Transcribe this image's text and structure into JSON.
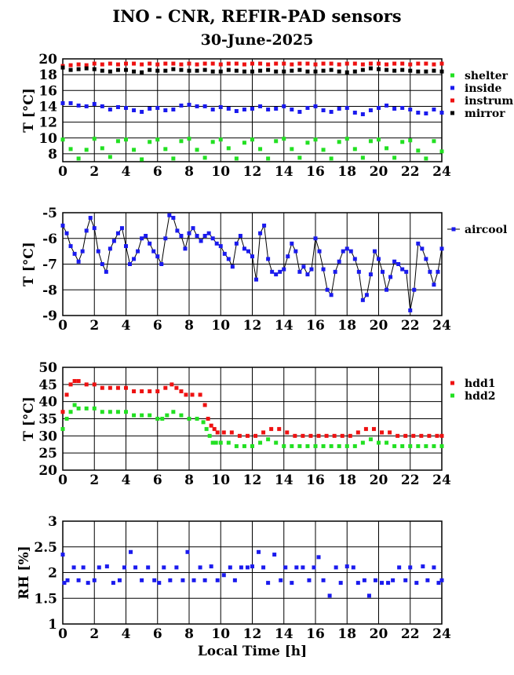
{
  "header": {
    "title": "INO - CNR, REFIR-PAD sensors",
    "subtitle": "30-June-2025"
  },
  "colors": {
    "shelter": "#22e022",
    "inside": "#1a1aee",
    "instrum": "#ee1111",
    "mirror": "#000000",
    "aircool": "#1a1aee",
    "hdd1": "#ee1111",
    "hdd2": "#22e022",
    "rh": "#1a1aee"
  },
  "x_axis": {
    "ticks": [
      "0",
      "2",
      "4",
      "6",
      "8",
      "10",
      "12",
      "14",
      "16",
      "18",
      "20",
      "22",
      "24"
    ],
    "label": "Local Time [h]"
  },
  "chart_data": [
    {
      "type": "scatter",
      "ylabel": "T [°C]",
      "xlim": [
        0,
        24
      ],
      "ylim": [
        7,
        20
      ],
      "yticks": [
        "8",
        "10",
        "12",
        "14",
        "16",
        "18",
        "20"
      ],
      "grid": true,
      "legend_position": "right",
      "series": [
        {
          "name": "shelter",
          "x": [
            0,
            0.5,
            1,
            1.5,
            2,
            2.5,
            3,
            3.5,
            4,
            4.5,
            5,
            5.5,
            6,
            6.5,
            7,
            7.5,
            8,
            8.5,
            9,
            9.5,
            10,
            10.5,
            11,
            11.5,
            12,
            12.5,
            13,
            13.5,
            14,
            14.5,
            15,
            15.5,
            16,
            16.5,
            17,
            17.5,
            18,
            18.5,
            19,
            19.5,
            20,
            20.5,
            21,
            21.5,
            22,
            22.5,
            23,
            23.5,
            24
          ],
          "y": [
            9.8,
            8.6,
            7.4,
            8.5,
            9.9,
            8.7,
            7.6,
            9.6,
            9.8,
            8.5,
            7.3,
            9.5,
            9.8,
            8.6,
            7.4,
            9.6,
            9.9,
            8.5,
            7.5,
            9.5,
            9.8,
            8.7,
            7.4,
            9.4,
            9.8,
            8.6,
            7.4,
            9.6,
            9.9,
            8.6,
            7.5,
            9.4,
            9.8,
            8.5,
            7.4,
            9.5,
            9.9,
            8.6,
            7.5,
            9.6,
            9.8,
            8.7,
            7.5,
            9.5,
            9.7,
            8.4,
            7.4,
            9.6,
            8.3
          ]
        },
        {
          "name": "inside",
          "x": [
            0,
            0.5,
            1,
            1.5,
            2,
            2.5,
            3,
            3.5,
            4,
            4.5,
            5,
            5.5,
            6,
            6.5,
            7,
            7.5,
            8,
            8.5,
            9,
            9.5,
            10,
            10.5,
            11,
            11.5,
            12,
            12.5,
            13,
            13.5,
            14,
            14.5,
            15,
            15.5,
            16,
            16.5,
            17,
            17.5,
            18,
            18.5,
            19,
            19.5,
            20,
            20.5,
            21,
            21.5,
            22,
            22.5,
            23,
            23.5,
            24
          ],
          "y": [
            14.4,
            14.4,
            14.1,
            14.0,
            14.3,
            14.0,
            13.6,
            13.9,
            13.8,
            13.5,
            13.3,
            13.7,
            13.8,
            13.5,
            13.6,
            14.1,
            14.2,
            14.0,
            14.0,
            13.6,
            13.9,
            13.7,
            13.4,
            13.6,
            13.7,
            14.0,
            13.6,
            13.7,
            14.0,
            13.6,
            13.3,
            13.8,
            14.0,
            13.5,
            13.3,
            13.7,
            13.8,
            13.2,
            13.0,
            13.5,
            13.8,
            14.1,
            13.7,
            13.8,
            13.6,
            13.2,
            13.1,
            13.6,
            13.2
          ]
        },
        {
          "name": "instrum.",
          "x": [
            0,
            0.5,
            1,
            1.5,
            2,
            2.5,
            3,
            3.5,
            4,
            4.5,
            5,
            5.5,
            6,
            6.5,
            7,
            7.5,
            8,
            8.5,
            9,
            9.5,
            10,
            10.5,
            11,
            11.5,
            12,
            12.5,
            13,
            13.5,
            14,
            14.5,
            15,
            15.5,
            16,
            16.5,
            17,
            17.5,
            18,
            18.5,
            19,
            19.5,
            20,
            20.5,
            21,
            21.5,
            22,
            22.5,
            23,
            23.5,
            24
          ],
          "y": [
            19.1,
            19.2,
            19.3,
            19.2,
            19.4,
            19.3,
            19.4,
            19.3,
            19.4,
            19.4,
            19.3,
            19.4,
            19.3,
            19.4,
            19.4,
            19.3,
            19.4,
            19.3,
            19.4,
            19.4,
            19.3,
            19.4,
            19.4,
            19.3,
            19.4,
            19.4,
            19.3,
            19.4,
            19.4,
            19.3,
            19.4,
            19.4,
            19.3,
            19.4,
            19.4,
            19.3,
            19.4,
            19.4,
            19.3,
            19.4,
            19.4,
            19.3,
            19.4,
            19.4,
            19.3,
            19.4,
            19.4,
            19.3,
            19.4
          ]
        },
        {
          "name": "mirror",
          "x": [
            0,
            0.5,
            1,
            1.5,
            2,
            2.5,
            3,
            3.5,
            4,
            4.5,
            5,
            5.5,
            6,
            6.5,
            7,
            7.5,
            8,
            8.5,
            9,
            9.5,
            10,
            10.5,
            11,
            11.5,
            12,
            12.5,
            13,
            13.5,
            14,
            14.5,
            15,
            15.5,
            16,
            16.5,
            17,
            17.5,
            18,
            18.5,
            19,
            19.5,
            20,
            20.5,
            21,
            21.5,
            22,
            22.5,
            23,
            23.5,
            24
          ],
          "y": [
            18.9,
            18.6,
            18.7,
            18.8,
            18.7,
            18.5,
            18.4,
            18.6,
            18.6,
            18.4,
            18.3,
            18.6,
            18.5,
            18.5,
            18.7,
            18.6,
            18.5,
            18.5,
            18.6,
            18.4,
            18.4,
            18.6,
            18.5,
            18.4,
            18.4,
            18.5,
            18.6,
            18.4,
            18.4,
            18.5,
            18.6,
            18.4,
            18.4,
            18.5,
            18.6,
            18.4,
            18.3,
            18.4,
            18.6,
            18.8,
            18.7,
            18.6,
            18.5,
            18.6,
            18.5,
            18.4,
            18.4,
            18.5,
            18.4
          ]
        }
      ]
    },
    {
      "type": "line",
      "ylabel": "T [°C]",
      "xlim": [
        0,
        24
      ],
      "ylim": [
        -9,
        -5
      ],
      "yticks": [
        "-9",
        "-8",
        "-7",
        "-6",
        "-5"
      ],
      "grid": true,
      "legend_position": "right",
      "series": [
        {
          "name": "aircool",
          "x": [
            0,
            0.25,
            0.5,
            0.75,
            1,
            1.25,
            1.5,
            1.75,
            2,
            2.25,
            2.5,
            2.75,
            3,
            3.25,
            3.5,
            3.75,
            4,
            4.25,
            4.5,
            4.75,
            5,
            5.25,
            5.5,
            5.75,
            6,
            6.25,
            6.5,
            6.75,
            7,
            7.25,
            7.5,
            7.75,
            8,
            8.25,
            8.5,
            8.75,
            9,
            9.25,
            9.5,
            9.75,
            10,
            10.25,
            10.5,
            10.75,
            11,
            11.25,
            11.5,
            11.75,
            12,
            12.25,
            12.5,
            12.75,
            13,
            13.25,
            13.5,
            13.75,
            14,
            14.25,
            14.5,
            14.75,
            15,
            15.25,
            15.5,
            15.75,
            16,
            16.25,
            16.5,
            16.75,
            17,
            17.25,
            17.5,
            17.75,
            18,
            18.25,
            18.5,
            18.75,
            19,
            19.25,
            19.5,
            19.75,
            20,
            20.25,
            20.5,
            20.75,
            21,
            21.25,
            21.5,
            21.75,
            22,
            22.25,
            22.5,
            22.75,
            23,
            23.25,
            23.5,
            23.75,
            24
          ],
          "y": [
            -5.5,
            -5.8,
            -6.3,
            -6.6,
            -6.9,
            -6.5,
            -5.7,
            -5.2,
            -5.6,
            -6.5,
            -7.0,
            -7.3,
            -6.4,
            -6.1,
            -5.8,
            -5.6,
            -6.3,
            -7.0,
            -6.8,
            -6.5,
            -6.0,
            -5.9,
            -6.2,
            -6.5,
            -6.7,
            -7.0,
            -6.0,
            -5.1,
            -5.2,
            -5.7,
            -5.9,
            -6.4,
            -5.8,
            -5.6,
            -5.9,
            -6.1,
            -5.9,
            -5.8,
            -6.0,
            -6.2,
            -6.3,
            -6.6,
            -6.8,
            -7.1,
            -6.2,
            -5.9,
            -6.4,
            -6.5,
            -6.7,
            -7.6,
            -5.8,
            -5.5,
            -6.8,
            -7.3,
            -7.4,
            -7.3,
            -7.2,
            -6.7,
            -6.2,
            -6.5,
            -7.3,
            -7.1,
            -7.4,
            -7.2,
            -6.0,
            -6.5,
            -7.2,
            -8.0,
            -8.2,
            -7.3,
            -6.9,
            -6.5,
            -6.4,
            -6.5,
            -6.8,
            -7.3,
            -8.4,
            -8.2,
            -7.4,
            -6.5,
            -6.8,
            -7.3,
            -8.0,
            -7.5,
            -6.9,
            -7.0,
            -7.2,
            -7.3,
            -8.8,
            -8.0,
            -6.2,
            -6.4,
            -6.8,
            -7.3,
            -7.8,
            -7.3,
            -6.4
          ]
        }
      ]
    },
    {
      "type": "scatter",
      "ylabel": "T [°C]",
      "xlim": [
        0,
        24
      ],
      "ylim": [
        20,
        50
      ],
      "yticks": [
        "20",
        "25",
        "30",
        "35",
        "40",
        "45",
        "50"
      ],
      "grid": true,
      "legend_position": "right",
      "series": [
        {
          "name": "hdd1",
          "x": [
            0,
            0.25,
            0.5,
            0.75,
            1,
            1.5,
            2,
            2.5,
            3,
            3.5,
            4,
            4.5,
            5,
            5.5,
            6,
            6.5,
            6.9,
            7.2,
            7.5,
            7.8,
            8.2,
            8.7,
            9.0,
            9.2,
            9.4,
            9.6,
            9.8,
            10.2,
            10.7,
            11.2,
            11.7,
            12.2,
            12.7,
            13.2,
            13.7,
            14.2,
            14.7,
            15.2,
            15.7,
            16.2,
            16.7,
            17.2,
            17.7,
            18.2,
            18.7,
            19.2,
            19.7,
            20.2,
            20.7,
            21.2,
            21.7,
            22.2,
            22.7,
            23.2,
            23.7,
            24
          ],
          "y": [
            37,
            42,
            45,
            46,
            46,
            45,
            45,
            44,
            44,
            44,
            44,
            43,
            43,
            43,
            43,
            44,
            45,
            44,
            43,
            42,
            42,
            42,
            39,
            35,
            33,
            32,
            31,
            31,
            31,
            30,
            30,
            30,
            31,
            32,
            32,
            31,
            30,
            30,
            30,
            30,
            30,
            30,
            30,
            30,
            31,
            32,
            32,
            31,
            31,
            30,
            30,
            30,
            30,
            30,
            30,
            30
          ]
        },
        {
          "name": "hdd2",
          "x": [
            0,
            0.25,
            0.5,
            0.75,
            1,
            1.5,
            2,
            2.5,
            3,
            3.5,
            4,
            4.5,
            5,
            5.5,
            6,
            6.3,
            6.6,
            7,
            7.5,
            8,
            8.5,
            8.9,
            9.1,
            9.3,
            9.5,
            9.7,
            10,
            10.5,
            11,
            11.5,
            12,
            12.5,
            13,
            13.5,
            14,
            14.5,
            15,
            15.5,
            16,
            16.5,
            17,
            17.5,
            18,
            18.5,
            19,
            19.5,
            20,
            20.5,
            21,
            21.5,
            22,
            22.5,
            23,
            23.5,
            24
          ],
          "y": [
            32,
            35,
            37,
            39,
            38,
            38,
            38,
            37,
            37,
            37,
            37,
            36,
            36,
            36,
            35,
            35,
            36,
            37,
            36,
            35,
            35,
            34,
            32,
            30,
            28,
            28,
            28,
            28,
            27,
            27,
            27,
            28,
            29,
            28,
            27,
            27,
            27,
            27,
            27,
            27,
            27,
            27,
            27,
            27,
            28,
            29,
            28,
            28,
            27,
            27,
            27,
            27,
            27,
            27,
            27
          ]
        }
      ]
    },
    {
      "type": "scatter",
      "ylabel": "RH [%]",
      "xlabel": "Local Time [h]",
      "xlim": [
        0,
        24
      ],
      "ylim": [
        1,
        3
      ],
      "yticks": [
        "1",
        "1.5",
        "2",
        "2.5",
        "3"
      ],
      "grid": true,
      "series": [
        {
          "name": "",
          "x": [
            0,
            0.1,
            0.3,
            0.7,
            1.0,
            1.3,
            1.6,
            2.0,
            2.3,
            2.8,
            3.2,
            3.6,
            3.9,
            4.3,
            4.6,
            5.0,
            5.4,
            5.8,
            6.1,
            6.4,
            6.8,
            7.2,
            7.6,
            7.9,
            8.3,
            8.7,
            9.0,
            9.4,
            9.8,
            10.2,
            10.6,
            10.9,
            11.3,
            11.7,
            12.0,
            12.4,
            12.7,
            13.0,
            13.4,
            13.8,
            14.1,
            14.5,
            14.8,
            15.2,
            15.6,
            15.9,
            16.2,
            16.5,
            16.9,
            17.3,
            17.6,
            18.0,
            18.4,
            18.7,
            19.1,
            19.4,
            19.8,
            20.2,
            20.6,
            20.9,
            21.3,
            21.7,
            22.0,
            22.4,
            22.8,
            23.1,
            23.5,
            23.8,
            24
          ],
          "y": [
            2.35,
            1.8,
            1.85,
            2.1,
            1.85,
            2.1,
            1.8,
            1.85,
            2.1,
            2.12,
            1.8,
            1.85,
            2.1,
            2.4,
            2.1,
            1.85,
            2.1,
            1.85,
            1.8,
            2.1,
            1.85,
            2.1,
            1.85,
            2.4,
            1.85,
            2.1,
            1.85,
            2.12,
            1.85,
            1.95,
            2.1,
            1.85,
            2.1,
            2.1,
            2.12,
            2.4,
            2.1,
            1.8,
            2.35,
            1.85,
            2.1,
            1.8,
            2.1,
            2.1,
            1.85,
            2.1,
            2.3,
            1.85,
            1.55,
            2.1,
            1.8,
            2.12,
            2.1,
            1.8,
            1.85,
            1.55,
            1.85,
            1.8,
            1.8,
            1.85,
            2.1,
            1.85,
            2.1,
            1.8,
            2.12,
            1.85,
            2.1,
            1.8,
            1.85
          ]
        }
      ]
    }
  ]
}
